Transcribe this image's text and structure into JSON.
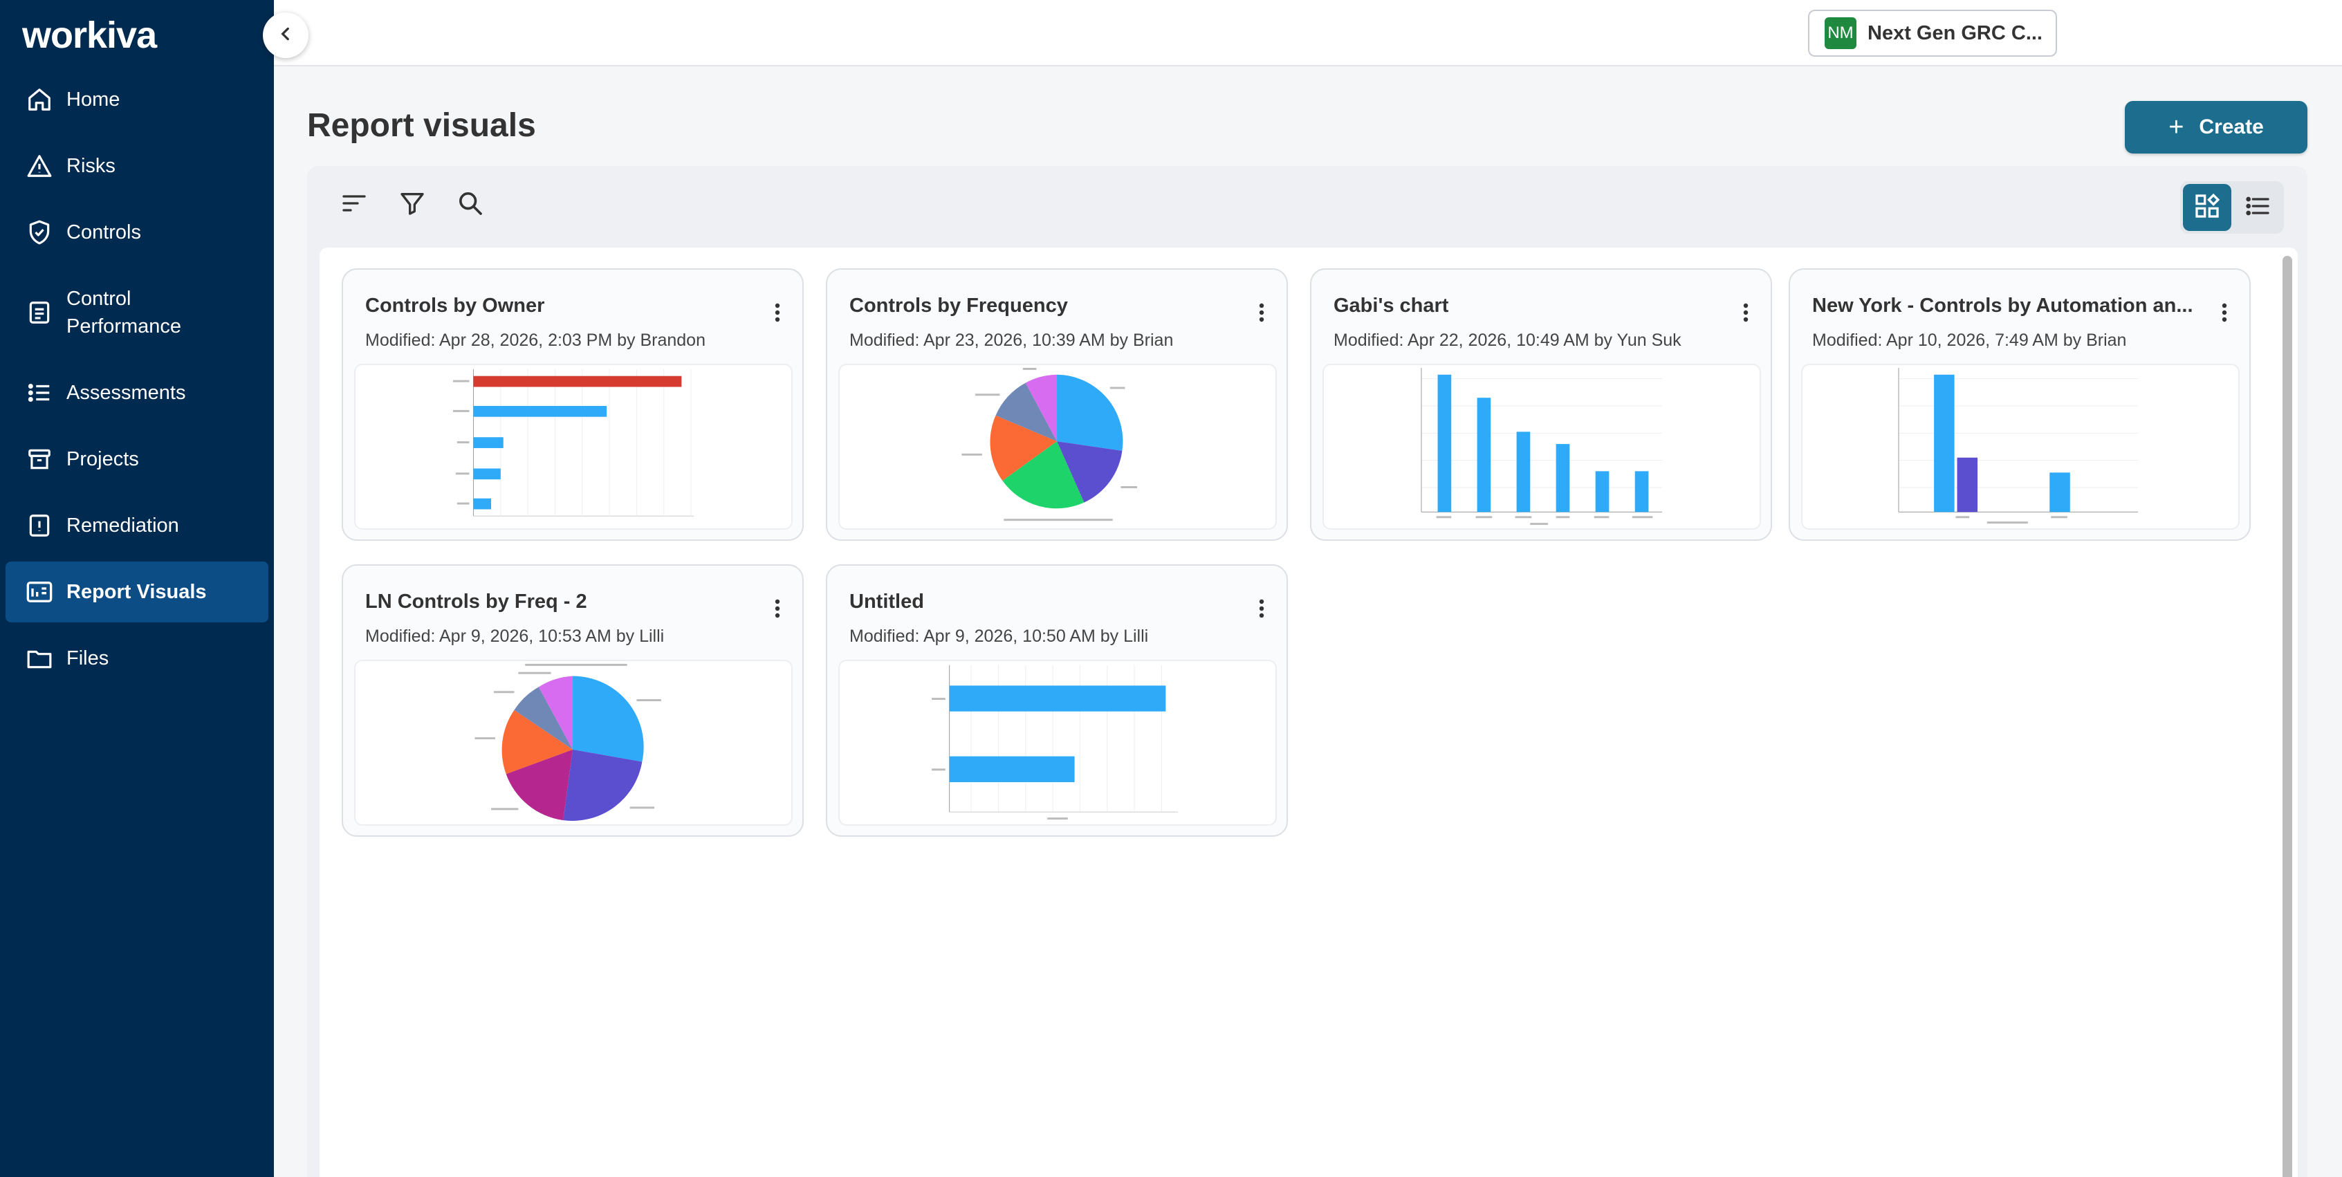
{
  "app": {
    "logo": "workiva",
    "org_avatar": "NM",
    "org_name": "Next Gen GRC C..."
  },
  "sidebar": {
    "items": [
      {
        "label": "Home",
        "icon": "home-icon",
        "active": false
      },
      {
        "label": "Risks",
        "icon": "warning-icon",
        "active": false
      },
      {
        "label": "Controls",
        "icon": "shield-check-icon",
        "active": false
      },
      {
        "label": "Control Performance",
        "icon": "clipboard-icon",
        "active": false
      },
      {
        "label": "Assessments",
        "icon": "checklist-icon",
        "active": false
      },
      {
        "label": "Projects",
        "icon": "archive-box-icon",
        "active": false
      },
      {
        "label": "Remediation",
        "icon": "alert-clipboard-icon",
        "active": false
      },
      {
        "label": "Report Visuals",
        "icon": "report-icon",
        "active": true
      },
      {
        "label": "Files",
        "icon": "folder-icon",
        "active": false
      }
    ]
  },
  "header": {
    "title": "Report visuals",
    "create_label": "Create"
  },
  "toolbar": {
    "icons": [
      "sort-icon",
      "filter-icon",
      "search-icon"
    ],
    "view_modes": [
      "grid-view",
      "list-view"
    ],
    "selected_view": "grid-view"
  },
  "colors": {
    "sidebar": "#002a4f",
    "active_nav": "#0d4d86",
    "accent": "#1c6d8e",
    "bar_blue": "#2eaaf9",
    "bar_red": "#d63b2f",
    "bar_purple": "#5b4fcf"
  },
  "visuals": [
    {
      "title": "Controls by Owner",
      "modified": "Modified: Apr 28, 2026, 2:03 PM by Brandon",
      "thumbnail": "horizontal-bar-chart"
    },
    {
      "title": "Controls by Frequency",
      "modified": "Modified: Apr 23, 2026, 10:39 AM by Brian",
      "thumbnail": "pie-chart"
    },
    {
      "title": "Gabi's chart",
      "modified": "Modified: Apr 22, 2026, 10:49 AM by Yun Suk",
      "thumbnail": "vertical-bar-chart"
    },
    {
      "title": "New York - Controls by Automation an...",
      "modified": "Modified: Apr 10, 2026, 7:49 AM by Brian",
      "thumbnail": "vertical-bar-chart"
    },
    {
      "title": "LN Controls by Freq - 2",
      "modified": "Modified: Apr 9, 2026, 10:53 AM by Lilli",
      "thumbnail": "pie-chart"
    },
    {
      "title": "Untitled",
      "modified": "Modified: Apr 9, 2026, 10:50 AM by Lilli",
      "thumbnail": "horizontal-bar-chart"
    }
  ]
}
